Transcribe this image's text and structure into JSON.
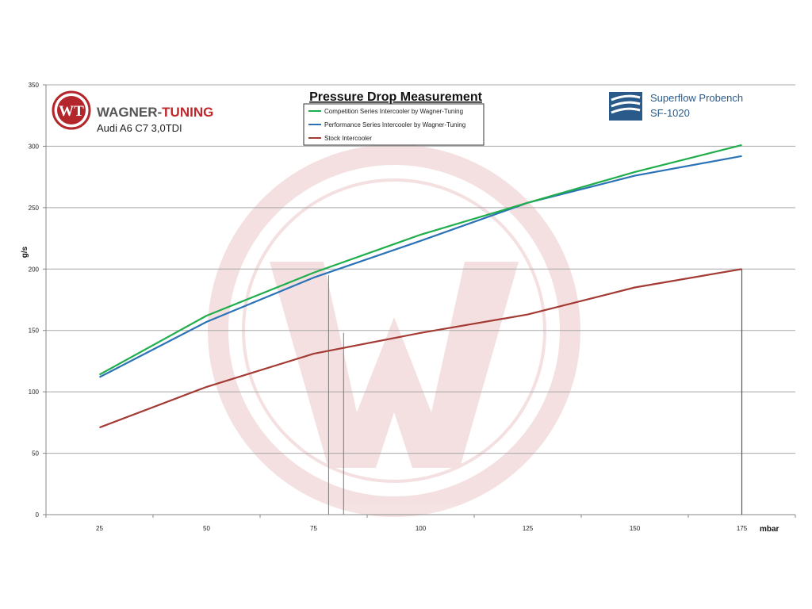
{
  "brand": {
    "name_part1": "WAGNER-",
    "name_part2": "TUNING",
    "logo_letters": "WT",
    "subtitle": "Audi A6 C7 3,0TDI",
    "name_color": "#555555",
    "accent_color": "#c0282d"
  },
  "bench": {
    "line1": "Superflow Probench",
    "line2": "SF-1020",
    "color": "#2a5a8a"
  },
  "chart_data": {
    "type": "line",
    "title": "Pressure Drop Measurement",
    "xlabel": "mbar",
    "ylabel": "g/s",
    "x": [
      25,
      50,
      75,
      100,
      125,
      150,
      175
    ],
    "xlim": [
      12.5,
      187.5
    ],
    "ylim": [
      0,
      350
    ],
    "yticks": [
      0,
      50,
      100,
      150,
      200,
      250,
      300,
      350
    ],
    "grid": "horizontal",
    "legend_position": "top-center",
    "series": [
      {
        "name": "Competition Series Intercooler by Wagner-Tuning",
        "color": "#1fae4b",
        "values": [
          114,
          162,
          197,
          228,
          254,
          279,
          301
        ]
      },
      {
        "name": "Performance Series Intercooler by Wagner-Tuning",
        "color": "#2b72b6",
        "values": [
          112,
          157,
          193,
          223,
          254,
          276,
          292
        ]
      },
      {
        "name": "Stock Intercooler",
        "color": "#a33a34",
        "values": [
          71,
          104,
          131,
          148,
          163,
          185,
          200
        ]
      }
    ]
  }
}
